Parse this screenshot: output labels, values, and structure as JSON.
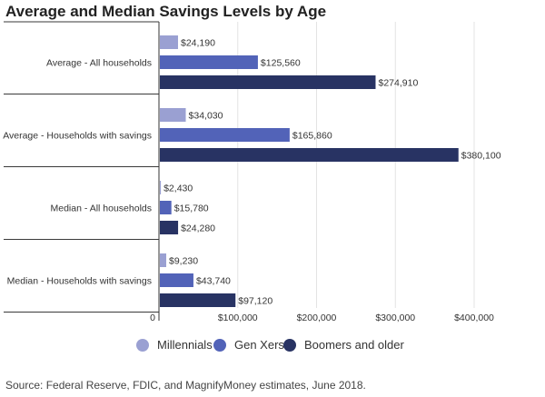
{
  "chart_data": {
    "type": "bar",
    "orientation": "horizontal",
    "title": "Average and Median Savings Levels by Age",
    "categories": [
      "Average - All households",
      "Average - Households with savings",
      "Median - All households",
      "Median - Households with savings"
    ],
    "series": [
      {
        "name": "Millennials",
        "color": "#9aa0d2",
        "values": [
          24190,
          34030,
          2430,
          9230
        ],
        "labels": [
          "$24,190",
          "$34,030",
          "$2,430",
          "$9,230"
        ]
      },
      {
        "name": "Gen Xers",
        "color": "#5263b8",
        "values": [
          125560,
          165860,
          15780,
          43740
        ],
        "labels": [
          "$125,560",
          "$165,860",
          "$15,780",
          "$43,740"
        ]
      },
      {
        "name": "Boomers and older",
        "color": "#283363",
        "values": [
          274910,
          380100,
          24280,
          97120
        ],
        "labels": [
          "$274,910",
          "$380,100",
          "$24,280",
          "$97,120"
        ]
      }
    ],
    "xlim": [
      0,
      400000
    ],
    "xticks": [
      0,
      100000,
      200000,
      300000,
      400000
    ],
    "xtick_labels": [
      "0",
      "$100,000",
      "$200,000",
      "$300,000",
      "$400,000"
    ],
    "grid": true,
    "legend_position": "bottom"
  },
  "source": "Source: Federal Reserve, FDIC, and MagnifyMoney estimates, June 2018."
}
